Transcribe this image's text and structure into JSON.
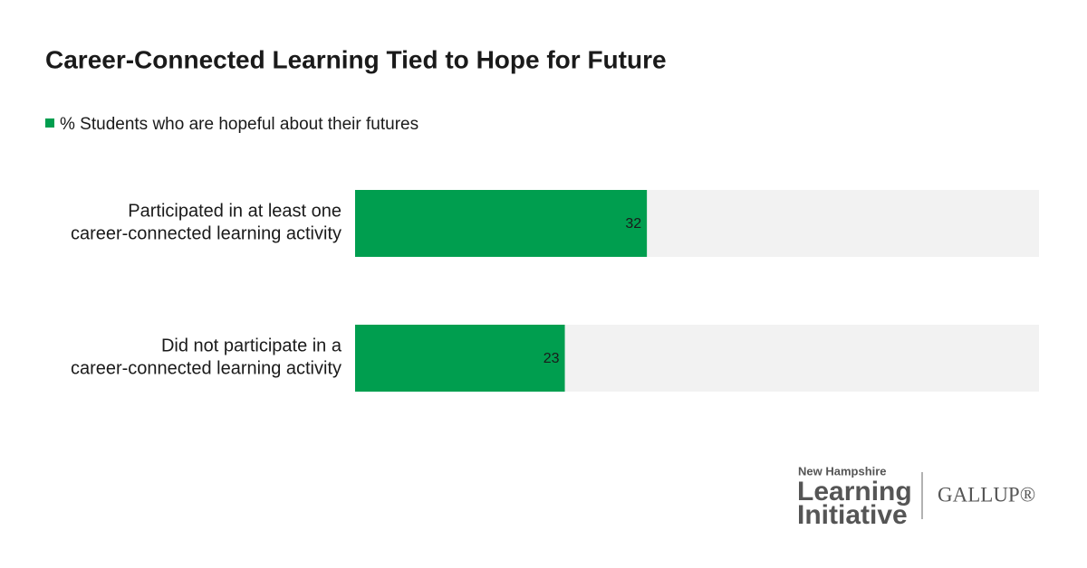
{
  "chart_data": {
    "type": "bar",
    "title": "Career-Connected Learning Tied to Hope for Future",
    "categories": [
      "Participated in at least one\ncareer-connected learning activity",
      "Did not participate in a\ncareer-connected learning activity"
    ],
    "series": [
      {
        "name": "% Students who are hopeful about their futures",
        "color": "#009e4f",
        "values": [
          32,
          23
        ]
      }
    ],
    "xlim": [
      0,
      75
    ],
    "track_color": "#f2f2f2"
  },
  "logos": {
    "partner_small": "New Hampshire",
    "partner_line1": "Learning",
    "partner_line2": "Initiative",
    "gallup": "GALLUP®"
  }
}
